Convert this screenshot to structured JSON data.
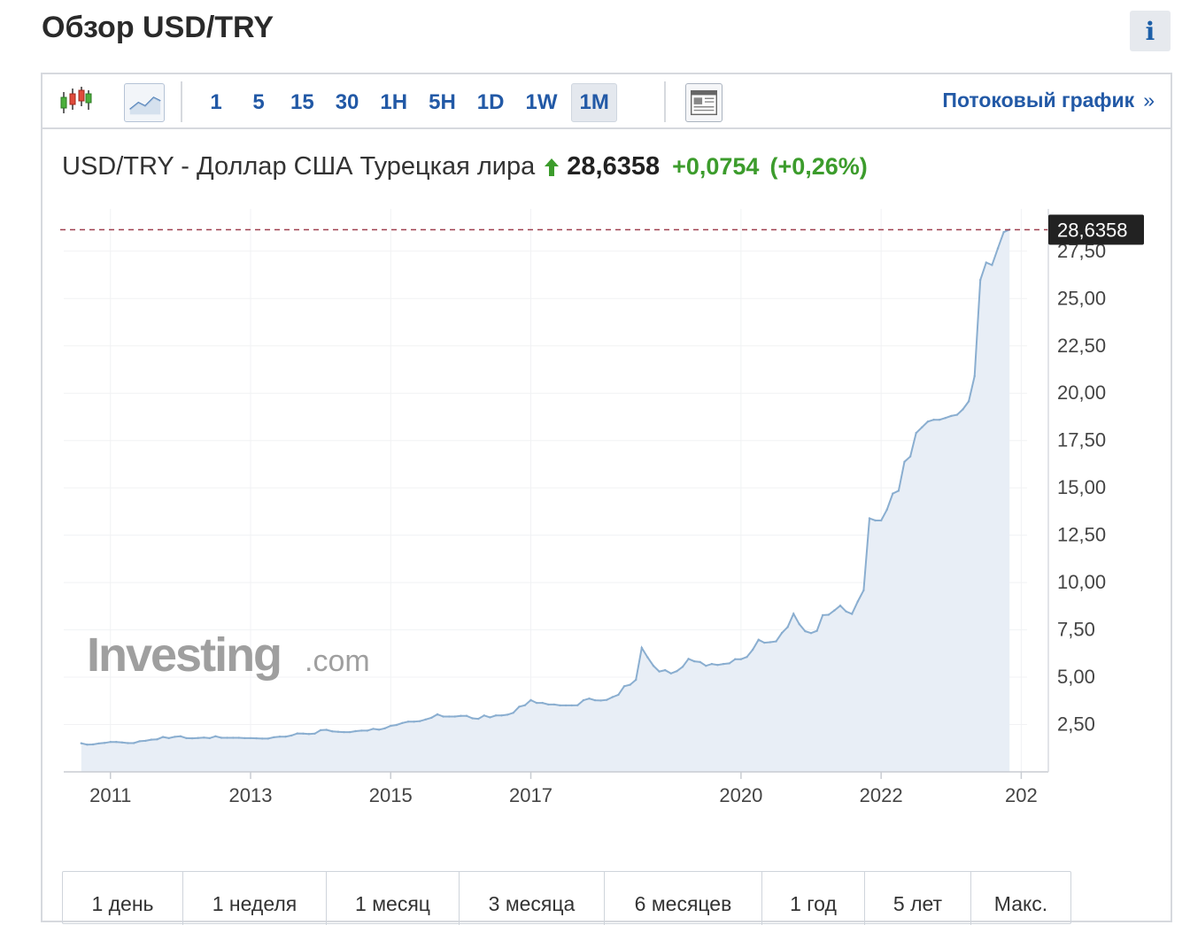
{
  "page": {
    "title": "Обзор USD/TRY",
    "info_label": "i"
  },
  "toolbar": {
    "intervals": [
      "1",
      "5",
      "15",
      "30",
      "1H",
      "5H",
      "1D",
      "1W",
      "1M"
    ],
    "active_interval": "1M",
    "stream_link": "Потоковый график",
    "stream_chevron": "»",
    "icons": [
      "candlestick-icon",
      "line-chart-icon",
      "news-layout-icon"
    ]
  },
  "quote": {
    "name": "USD/TRY - Доллар США Турецкая лира",
    "price": "28,6358",
    "change": "+0,0754",
    "change_pct": "(+0,26%)",
    "direction": "up",
    "up_color": "#3c9c2c"
  },
  "watermark": {
    "brand": "Investing",
    "suffix": ".com"
  },
  "ranges": [
    "1 день",
    "1 неделя",
    "1 месяц",
    "3 месяца",
    "6 месяцев",
    "1 год",
    "5 лет",
    "Макс."
  ],
  "chart_data": {
    "type": "area",
    "x_ticks": [
      "2011",
      "2013",
      "2015",
      "2017",
      "2020",
      "2022",
      "202"
    ],
    "y_ticks": [
      "2,50",
      "5,00",
      "7,50",
      "10,00",
      "12,50",
      "15,00",
      "17,50",
      "20,00",
      "22,50",
      "25,00",
      "27,50"
    ],
    "ylim": [
      0,
      28.8
    ],
    "last_value": 28.6358,
    "last_value_label": "28,6358",
    "line_color": "#8aaed0",
    "fill_color": "#e8eef6",
    "grid": true,
    "x": [
      "2010-08",
      "2010-09",
      "2010-10",
      "2010-11",
      "2010-12",
      "2011-01",
      "2011-02",
      "2011-03",
      "2011-04",
      "2011-05",
      "2011-06",
      "2011-07",
      "2011-08",
      "2011-09",
      "2011-10",
      "2011-11",
      "2011-12",
      "2012-01",
      "2012-02",
      "2012-03",
      "2012-04",
      "2012-05",
      "2012-06",
      "2012-07",
      "2012-08",
      "2012-09",
      "2012-10",
      "2012-11",
      "2012-12",
      "2013-01",
      "2013-02",
      "2013-03",
      "2013-04",
      "2013-05",
      "2013-06",
      "2013-07",
      "2013-08",
      "2013-09",
      "2013-10",
      "2013-11",
      "2013-12",
      "2014-01",
      "2014-02",
      "2014-03",
      "2014-04",
      "2014-05",
      "2014-06",
      "2014-07",
      "2014-08",
      "2014-09",
      "2014-10",
      "2014-11",
      "2014-12",
      "2015-01",
      "2015-02",
      "2015-03",
      "2015-04",
      "2015-05",
      "2015-06",
      "2015-07",
      "2015-08",
      "2015-09",
      "2015-10",
      "2015-11",
      "2015-12",
      "2016-01",
      "2016-02",
      "2016-03",
      "2016-04",
      "2016-05",
      "2016-06",
      "2016-07",
      "2016-08",
      "2016-09",
      "2016-10",
      "2016-11",
      "2016-12",
      "2017-01",
      "2017-02",
      "2017-03",
      "2017-04",
      "2017-05",
      "2017-06",
      "2017-07",
      "2017-08",
      "2017-09",
      "2017-10",
      "2017-11",
      "2017-12",
      "2018-01",
      "2018-02",
      "2018-03",
      "2018-04",
      "2018-05",
      "2018-06",
      "2018-07",
      "2018-08",
      "2018-09",
      "2018-10",
      "2018-11",
      "2018-12",
      "2019-01",
      "2019-02",
      "2019-03",
      "2019-04",
      "2019-05",
      "2019-06",
      "2019-07",
      "2019-08",
      "2019-09",
      "2019-10",
      "2019-11",
      "2019-12",
      "2020-01",
      "2020-02",
      "2020-03",
      "2020-04",
      "2020-05",
      "2020-06",
      "2020-07",
      "2020-08",
      "2020-09",
      "2020-10",
      "2020-11",
      "2020-12",
      "2021-01",
      "2021-02",
      "2021-03",
      "2021-04",
      "2021-05",
      "2021-06",
      "2021-07",
      "2021-08",
      "2021-09",
      "2021-10",
      "2021-11",
      "2021-12",
      "2022-01",
      "2022-02",
      "2022-03",
      "2022-04",
      "2022-05",
      "2022-06",
      "2022-07",
      "2022-08",
      "2022-09",
      "2022-10",
      "2022-11",
      "2022-12",
      "2023-01",
      "2023-02",
      "2023-03",
      "2023-04",
      "2023-05",
      "2023-06",
      "2023-07",
      "2023-08",
      "2023-09",
      "2023-10",
      "2023-11"
    ],
    "values": [
      1.51,
      1.44,
      1.45,
      1.5,
      1.53,
      1.58,
      1.58,
      1.55,
      1.52,
      1.52,
      1.62,
      1.64,
      1.7,
      1.72,
      1.84,
      1.78,
      1.85,
      1.88,
      1.78,
      1.77,
      1.79,
      1.81,
      1.78,
      1.88,
      1.8,
      1.8,
      1.8,
      1.8,
      1.78,
      1.78,
      1.77,
      1.76,
      1.76,
      1.83,
      1.86,
      1.86,
      1.92,
      2.03,
      2.02,
      2.0,
      2.02,
      2.2,
      2.22,
      2.14,
      2.12,
      2.1,
      2.1,
      2.15,
      2.18,
      2.18,
      2.27,
      2.23,
      2.3,
      2.43,
      2.48,
      2.58,
      2.65,
      2.65,
      2.68,
      2.77,
      2.86,
      3.04,
      2.92,
      2.92,
      2.92,
      2.96,
      2.96,
      2.83,
      2.8,
      2.98,
      2.88,
      2.98,
      2.98,
      3.02,
      3.12,
      3.44,
      3.52,
      3.79,
      3.64,
      3.64,
      3.56,
      3.56,
      3.51,
      3.51,
      3.51,
      3.52,
      3.78,
      3.87,
      3.78,
      3.77,
      3.8,
      3.95,
      4.07,
      4.52,
      4.6,
      4.86,
      6.55,
      6.05,
      5.6,
      5.3,
      5.37,
      5.2,
      5.32,
      5.55,
      5.97,
      5.84,
      5.8,
      5.6,
      5.7,
      5.65,
      5.7,
      5.73,
      5.95,
      5.95,
      6.07,
      6.45,
      6.98,
      6.82,
      6.85,
      6.89,
      7.34,
      7.65,
      8.35,
      7.8,
      7.43,
      7.33,
      7.45,
      8.28,
      8.3,
      8.53,
      8.78,
      8.47,
      8.34,
      9.0,
      9.59,
      13.39,
      13.28,
      13.28,
      13.85,
      14.7,
      14.85,
      16.38,
      16.66,
      17.9,
      18.2,
      18.5,
      18.6,
      18.6,
      18.69,
      18.8,
      18.86,
      19.15,
      19.57,
      20.9,
      25.98,
      26.9,
      26.77,
      27.65,
      28.51,
      28.64
    ]
  }
}
